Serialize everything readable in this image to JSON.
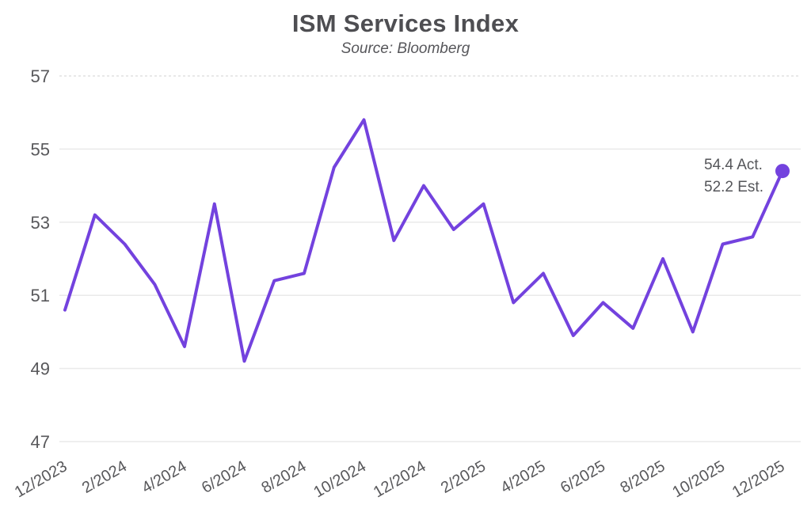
{
  "chart_data": {
    "type": "line",
    "title": "ISM Services Index",
    "subtitle": "Source: Bloomberg",
    "source": "Bloomberg",
    "categories": [
      "12/2023",
      "1/2024",
      "2/2024",
      "3/2024",
      "4/2024",
      "5/2024",
      "6/2024",
      "7/2024",
      "8/2024",
      "9/2024",
      "10/2024",
      "11/2024",
      "12/2024",
      "1/2025",
      "2/2025",
      "3/2025",
      "4/2025",
      "5/2025",
      "6/2025",
      "7/2025",
      "8/2025",
      "9/2025",
      "10/2025",
      "11/2025",
      "12/2025"
    ],
    "values": [
      50.6,
      53.2,
      52.4,
      51.3,
      49.6,
      53.5,
      49.2,
      51.4,
      51.6,
      54.5,
      55.8,
      52.5,
      54.0,
      52.8,
      53.5,
      50.8,
      51.6,
      49.9,
      50.8,
      50.1,
      52.0,
      50.0,
      52.4,
      52.6,
      54.4
    ],
    "x_tick_labels": [
      "12/2023",
      "2/2024",
      "4/2024",
      "6/2024",
      "8/2024",
      "10/2024",
      "12/2024",
      "2/2025",
      "4/2025",
      "6/2025",
      "8/2025",
      "10/2025",
      "12/2025"
    ],
    "x_tick_every": 2,
    "y_ticks": [
      57,
      55,
      53,
      51,
      49,
      47
    ],
    "ylim": [
      47,
      57
    ],
    "grid": "horizontal",
    "legend": "none",
    "x_label_rotation_deg": -30,
    "line_color": "#7342DE",
    "dot_color": "#7342DE",
    "grid_color": "#eaeaea",
    "top_grid_dashed": true,
    "text_color": "#58585b",
    "last_point_marker": true,
    "annotation": {
      "actual": "54.4 Act.",
      "estimate": "52.2 Est."
    }
  }
}
